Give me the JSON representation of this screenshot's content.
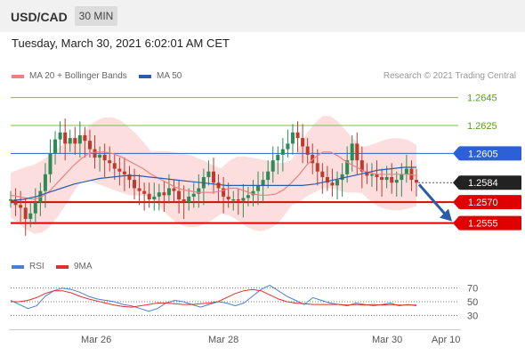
{
  "header": {
    "pair": "USD/CAD",
    "timeframe": "30 MIN"
  },
  "datetime": "Tuesday, March 30, 2021 6:02:01 AM CET",
  "legend": {
    "ma20": "MA 20 + Bollinger Bands",
    "ma50": "MA 50",
    "research": "Research © 2021 Trading Central"
  },
  "rsi_legend": {
    "rsi": "RSI",
    "ma9": "9MA"
  },
  "colors": {
    "ma20": "#f08080",
    "ma50": "#2a5caa",
    "bull": "#2e8b57",
    "bear": "#c0392b",
    "resistance": "#7cbf3c",
    "support": "#e00000",
    "pivot": "#2d5fd6",
    "current": "#222222",
    "rsi": "#4a7fd6",
    "rsi_ma": "#e03030"
  },
  "chart_data": {
    "type": "candlestick",
    "instrument": "USD/CAD",
    "interval": "30 MIN",
    "x_ticks": [
      "Mar 26",
      "Mar 28",
      "Mar 30",
      "Apr 10"
    ],
    "ylim": [
      1.2535,
      1.2655
    ],
    "levels": [
      {
        "value": 1.2645,
        "label": "1.2645",
        "kind": "resistance"
      },
      {
        "value": 1.2625,
        "label": "1.2625",
        "kind": "resistance"
      },
      {
        "value": 1.2605,
        "label": "1.2605",
        "kind": "pivot"
      },
      {
        "value": 1.2584,
        "label": "1.2584",
        "kind": "current"
      },
      {
        "value": 1.257,
        "label": "1.2570",
        "kind": "support"
      },
      {
        "value": 1.2555,
        "label": "1.2555",
        "kind": "support"
      }
    ],
    "closes": [
      1.2572,
      1.2568,
      1.2566,
      1.2558,
      1.2562,
      1.257,
      1.2578,
      1.259,
      1.2605,
      1.2615,
      1.262,
      1.2612,
      1.2616,
      1.2612,
      1.2618,
      1.2614,
      1.2608,
      1.2602,
      1.2604,
      1.26,
      1.2598,
      1.2594,
      1.2592,
      1.259,
      1.2586,
      1.258,
      1.2578,
      1.2576,
      1.2572,
      1.2574,
      1.2577,
      1.2575,
      1.258,
      1.2578,
      1.2572,
      1.257,
      1.2574,
      1.2576,
      1.258,
      1.2588,
      1.2592,
      1.2584,
      1.258,
      1.2574,
      1.2572,
      1.2572,
      1.2571,
      1.2573,
      1.2575,
      1.2578,
      1.2582,
      1.2586,
      1.2592,
      1.26,
      1.2604,
      1.2608,
      1.2612,
      1.262,
      1.2616,
      1.261,
      1.2604,
      1.2598,
      1.2592,
      1.2588,
      1.2584,
      1.2582,
      1.2586,
      1.259,
      1.26,
      1.2612,
      1.26,
      1.2592,
      1.2589,
      1.259,
      1.2588,
      1.2586,
      1.2588,
      1.2584,
      1.2586,
      1.259,
      1.2594,
      1.2586,
      1.2584
    ],
    "ma20": [
      1.2575,
      1.2574,
      1.2573,
      1.2572,
      1.2574,
      1.2578,
      1.2584,
      1.259,
      1.2596,
      1.2601,
      1.2605,
      1.2606,
      1.2606,
      1.2605,
      1.2603,
      1.26,
      1.2597,
      1.2594,
      1.259,
      1.2587,
      1.2584,
      1.2581,
      1.2579,
      1.2578,
      1.2577,
      1.2577,
      1.2577,
      1.2578,
      1.258,
      1.258,
      1.2578,
      1.2576,
      1.2575,
      1.2575,
      1.2576,
      1.2579,
      1.2584,
      1.259,
      1.2597,
      1.2602,
      1.2606,
      1.2606,
      1.2603,
      1.2599,
      1.2596,
      1.2593,
      1.2591,
      1.259,
      1.259,
      1.259,
      1.259,
      1.259,
      1.2589
    ],
    "ma50": [
      1.2571,
      1.2572,
      1.2574,
      1.2577,
      1.258,
      1.2583,
      1.2585,
      1.2587,
      1.2588,
      1.2589,
      1.2589,
      1.2588,
      1.2587,
      1.2586,
      1.2585,
      1.2584,
      1.2583,
      1.2582,
      1.2582,
      1.2582,
      1.2582,
      1.2582,
      1.2582,
      1.2582,
      1.2583,
      1.2585,
      1.2587,
      1.2589,
      1.2591,
      1.2593,
      1.2594,
      1.2595,
      1.2595
    ],
    "forecast": {
      "from": 1.2584,
      "to": 1.2555
    },
    "rsi": {
      "ylim": [
        20,
        80
      ],
      "ticks": [
        70,
        50,
        30
      ],
      "rsi_values": [
        52,
        46,
        40,
        44,
        58,
        66,
        70,
        68,
        64,
        58,
        54,
        52,
        50,
        46,
        44,
        40,
        36,
        40,
        48,
        52,
        50,
        46,
        42,
        46,
        50,
        48,
        44,
        48,
        58,
        68,
        74,
        66,
        58,
        52,
        46,
        56,
        52,
        48,
        46,
        44,
        48,
        46,
        44,
        46,
        48,
        44,
        46,
        44
      ],
      "ma_values": [
        50,
        50,
        52,
        56,
        62,
        66,
        66,
        63,
        58,
        54,
        51,
        48,
        45,
        43,
        42,
        44,
        46,
        48,
        48,
        47,
        46,
        46,
        47,
        48,
        50,
        56,
        62,
        66,
        68,
        66,
        60,
        54,
        50,
        48,
        47,
        46,
        46,
        46,
        46,
        45,
        46,
        45,
        46,
        45,
        46,
        45,
        45,
        45
      ]
    }
  }
}
